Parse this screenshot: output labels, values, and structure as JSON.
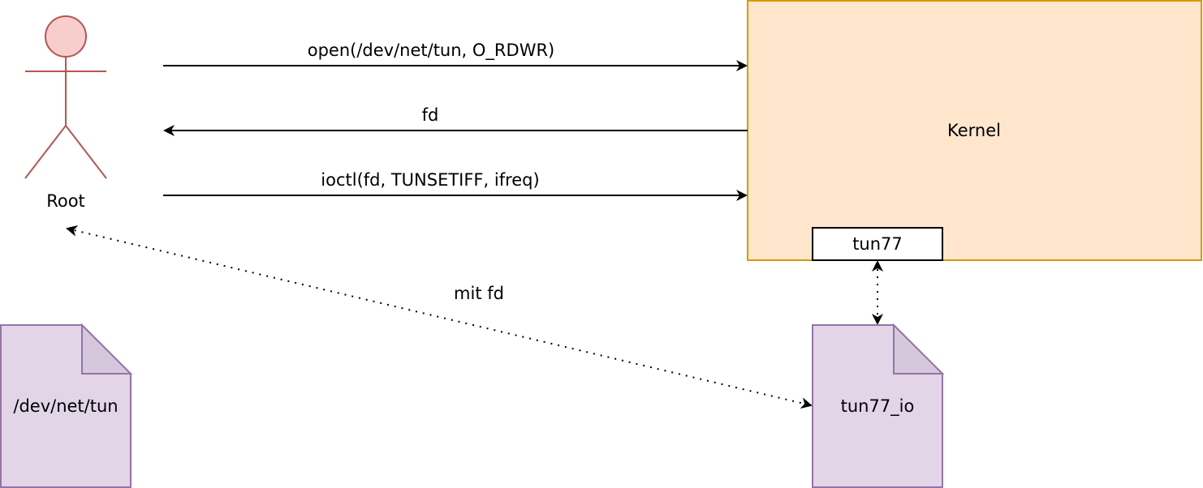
{
  "actor": {
    "label": "Root",
    "icon": "person-icon",
    "fill": "#f8cecc",
    "stroke": "#b85450"
  },
  "kernel": {
    "label": "Kernel",
    "fill": "#ffe6cc",
    "stroke": "#d79b00"
  },
  "tun_interface": {
    "label": "tun77",
    "fill": "#ffffff",
    "stroke": "#000000"
  },
  "files": {
    "dev_net_tun": {
      "label": "/dev/net/tun",
      "icon": "file-icon"
    },
    "tun77_io": {
      "label": "tun77_io",
      "icon": "file-icon"
    },
    "fill": "#e1d5e7",
    "stroke": "#9673a6"
  },
  "messages": {
    "open": "open(/dev/net/tun, O_RDWR)",
    "fd": "fd",
    "ioctl": "ioctl(fd, TUNSETIFF, ifreq)",
    "mit_fd": "mit fd"
  }
}
